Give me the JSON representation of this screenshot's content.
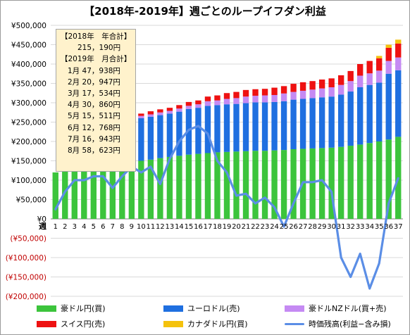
{
  "title": "【2018年-2019年】週ごとのループイフダン利益",
  "chart_data": {
    "type": "bar",
    "stacked": true,
    "x_axis_label": "週",
    "categories": [
      "1",
      "2",
      "3",
      "4",
      "5",
      "6",
      "7",
      "8",
      "9",
      "10",
      "11",
      "12",
      "13",
      "14",
      "15",
      "16",
      "17",
      "18",
      "19",
      "20",
      "21",
      "22",
      "23",
      "24",
      "25",
      "26",
      "27",
      "28",
      "29",
      "30",
      "31",
      "32",
      "33",
      "34",
      "35",
      "36",
      "37"
    ],
    "ylim": [
      -200000,
      500000
    ],
    "y_ticks": [
      {
        "value": 500000,
        "label": "¥500,000"
      },
      {
        "value": 450000,
        "label": "¥450,000"
      },
      {
        "value": 400000,
        "label": "¥400,000"
      },
      {
        "value": 350000,
        "label": "¥350,000"
      },
      {
        "value": 300000,
        "label": "¥300,000"
      },
      {
        "value": 250000,
        "label": "¥250,000"
      },
      {
        "value": 200000,
        "label": "¥200,000"
      },
      {
        "value": 150000,
        "label": "¥150,000"
      },
      {
        "value": 100000,
        "label": "¥100,000"
      },
      {
        "value": 50000,
        "label": "¥50,000"
      },
      {
        "value": 0,
        "label": "¥0"
      },
      {
        "value": -50000,
        "label": "(¥50,000)"
      },
      {
        "value": -100000,
        "label": "(¥100,000)"
      },
      {
        "value": -150000,
        "label": "(¥150,000)"
      },
      {
        "value": -200000,
        "label": "(¥200,000)"
      }
    ],
    "grid": true,
    "legend_position": "bottom",
    "series": [
      {
        "name": "豪ドル円(買)",
        "color": "#3cc43c",
        "kind": "bar",
        "values": [
          120000,
          124000,
          127000,
          130000,
          133000,
          136000,
          139000,
          142000,
          145000,
          150000,
          153000,
          157000,
          160000,
          163000,
          166000,
          168000,
          170000,
          172000,
          173000,
          174000,
          175000,
          176000,
          176000,
          177000,
          178000,
          180000,
          181000,
          182000,
          183000,
          184000,
          186000,
          189000,
          192000,
          196000,
          200000,
          205000,
          212000
        ]
      },
      {
        "name": "ユーロドル(売)",
        "color": "#1f6fe0",
        "kind": "bar",
        "values": [
          0,
          0,
          0,
          0,
          0,
          0,
          0,
          0,
          0,
          110000,
          111000,
          111000,
          112000,
          114000,
          118000,
          119000,
          122000,
          122000,
          123000,
          123000,
          124000,
          125000,
          125000,
          125000,
          126000,
          128000,
          129000,
          130000,
          131000,
          132000,
          135000,
          140000,
          148000,
          150000,
          152000,
          170000,
          172000
        ]
      },
      {
        "name": "豪ドルNZドル(買+売)",
        "color": "#c58af3",
        "kind": "bar",
        "values": [
          0,
          0,
          0,
          0,
          0,
          0,
          0,
          0,
          0,
          6000,
          6000,
          7000,
          7000,
          8000,
          8000,
          9000,
          12000,
          12000,
          14000,
          15000,
          17000,
          17000,
          18000,
          18000,
          20000,
          20000,
          21000,
          22000,
          23000,
          24000,
          25000,
          27000,
          30000,
          30000,
          31000,
          33000,
          33000
        ]
      },
      {
        "name": "スイス円(売)",
        "color": "#ee1111",
        "kind": "bar",
        "values": [
          0,
          0,
          0,
          0,
          0,
          0,
          0,
          0,
          0,
          6000,
          8000,
          8000,
          8000,
          9000,
          10000,
          10000,
          12000,
          13000,
          15000,
          16000,
          17000,
          17000,
          17000,
          19000,
          19000,
          21000,
          22000,
          22000,
          23000,
          23000,
          25000,
          26000,
          30000,
          32000,
          32000,
          34000,
          36000
        ]
      },
      {
        "name": "カナダドル円(買)",
        "color": "#f4c20d",
        "kind": "bar",
        "values": [
          0,
          0,
          0,
          0,
          0,
          0,
          0,
          0,
          0,
          0,
          0,
          0,
          0,
          0,
          0,
          0,
          0,
          0,
          0,
          0,
          0,
          0,
          0,
          0,
          0,
          0,
          0,
          0,
          0,
          0,
          0,
          0,
          0,
          0,
          6000,
          8000,
          10000
        ]
      },
      {
        "name": "時価残高(利益−含み損)",
        "color": "#5b8ee6",
        "kind": "line",
        "values": [
          25000,
          70000,
          100000,
          100000,
          110000,
          110000,
          80000,
          110000,
          135000,
          120000,
          135000,
          90000,
          155000,
          200000,
          230000,
          240000,
          220000,
          150000,
          120000,
          60000,
          65000,
          40000,
          55000,
          30000,
          -20000,
          40000,
          95000,
          95000,
          100000,
          70000,
          -100000,
          -150000,
          -90000,
          -180000,
          -115000,
          40000,
          105000
        ]
      }
    ]
  },
  "summary": {
    "year_header": "【2018年　年合計】",
    "year_total": "215，190円",
    "month_header": "【2019年　月合計】",
    "months": [
      {
        "label": "1月",
        "value": "47，938円"
      },
      {
        "label": "2月",
        "value": "20，947円"
      },
      {
        "label": "3月",
        "value": "17，534円"
      },
      {
        "label": "4月",
        "value": "30，860円"
      },
      {
        "label": "5月",
        "value": "15，511円"
      },
      {
        "label": "6月",
        "value": "12，768円"
      },
      {
        "label": "7月",
        "value": "16，943円"
      },
      {
        "label": "8月",
        "value": "58，623円"
      }
    ]
  },
  "legend": [
    {
      "label": "豪ドル円(買)",
      "color": "#3cc43c",
      "kind": "bar"
    },
    {
      "label": "ユーロドル(売)",
      "color": "#1f6fe0",
      "kind": "bar"
    },
    {
      "label": "豪ドルNZドル(買+売)",
      "color": "#c58af3",
      "kind": "bar"
    },
    {
      "label": "スイス円(売)",
      "color": "#ee1111",
      "kind": "bar"
    },
    {
      "label": "カナダドル円(買)",
      "color": "#f4c20d",
      "kind": "bar"
    },
    {
      "label": "時価残高(利益−含み損)",
      "color": "#5b8ee6",
      "kind": "line"
    }
  ]
}
